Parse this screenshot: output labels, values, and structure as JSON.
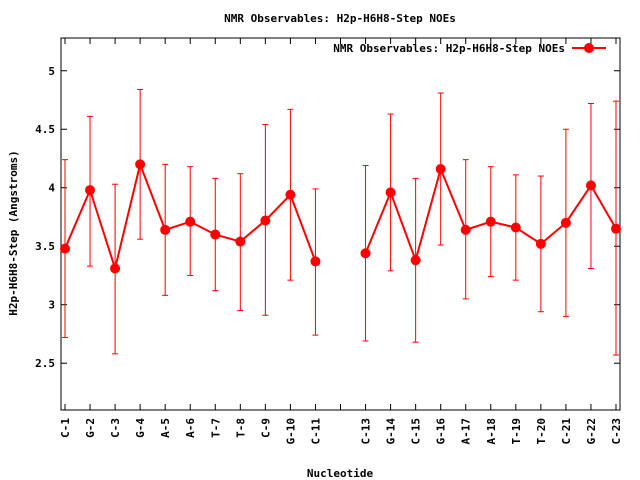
{
  "chart_data": {
    "type": "line",
    "title": "NMR Observables: H2p-H6H8-Step NOEs",
    "xlabel": "Nucleotide",
    "ylabel": "H2p-H6H8-Step (Angstroms)",
    "ylim": [
      2.1,
      5.28
    ],
    "yticks": [
      2.5,
      3,
      3.5,
      4,
      4.5,
      5
    ],
    "ytick_labels": [
      "2.5",
      "3",
      "3.5",
      "4",
      "4.5",
      "5"
    ],
    "grid": false,
    "legend_position": "top-right",
    "colors": {
      "series": "#ff0000",
      "axis": "#000000"
    },
    "categories": [
      "C-1",
      "G-2",
      "C-3",
      "G-4",
      "A-5",
      "A-6",
      "T-7",
      "T-8",
      "C-9",
      "G-10",
      "C-11",
      "",
      "C-13",
      "G-14",
      "C-15",
      "G-16",
      "A-17",
      "A-18",
      "T-19",
      "T-20",
      "C-21",
      "G-22",
      "C-23"
    ],
    "series": [
      {
        "name": "NMR Observables: H2p-H6H8-Step NOEs",
        "values": [
          3.48,
          3.98,
          3.31,
          4.2,
          3.64,
          3.71,
          3.6,
          3.54,
          3.72,
          3.94,
          3.37,
          null,
          3.44,
          3.96,
          3.38,
          4.16,
          3.64,
          3.71,
          3.66,
          3.52,
          3.7,
          4.02,
          3.65
        ],
        "err_low": [
          2.72,
          3.33,
          2.58,
          3.56,
          3.08,
          3.25,
          3.12,
          2.95,
          2.91,
          3.21,
          2.74,
          null,
          2.69,
          3.29,
          2.68,
          3.51,
          3.05,
          3.24,
          3.21,
          2.94,
          2.9,
          3.31,
          2.57
        ],
        "err_high": [
          4.24,
          4.61,
          4.03,
          4.84,
          4.2,
          4.18,
          4.08,
          4.12,
          4.54,
          4.67,
          3.99,
          null,
          4.19,
          4.63,
          4.08,
          4.81,
          4.24,
          4.18,
          4.11,
          4.1,
          4.5,
          4.72,
          4.74
        ]
      }
    ]
  }
}
